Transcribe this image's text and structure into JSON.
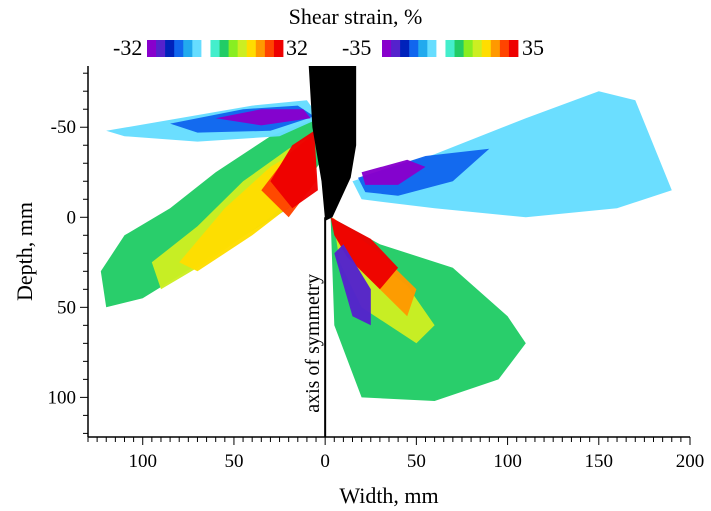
{
  "chart_data": {
    "type": "heatmap",
    "title": "Shear strain, %",
    "xlabel": "Width, mm",
    "ylabel": "Depth, mm",
    "xlim": [
      -130,
      200
    ],
    "ylim": [
      122,
      -84
    ],
    "x_ticks": [
      -100,
      -50,
      0,
      50,
      100,
      150,
      200
    ],
    "x_tick_labels": [
      "100",
      "50",
      "0",
      "50",
      "100",
      "150",
      "200"
    ],
    "y_ticks": [
      -50,
      0,
      50,
      100
    ],
    "y_tick_labels": [
      "-50",
      "0",
      "50",
      "100"
    ],
    "annotation": "axis of symmetry",
    "colorbars": [
      {
        "min_label": "-32",
        "max_label": "32",
        "min": -32,
        "max": 32
      },
      {
        "min_label": "-35",
        "max_label": "35",
        "min": -35,
        "max": 35
      }
    ],
    "colormap": [
      "#8800cc",
      "#5522cc",
      "#0022bb",
      "#1166ee",
      "#22aaee",
      "#66ddff",
      "#ffffff",
      "#44eecc",
      "#22cc66",
      "#88ee22",
      "#ccee22",
      "#ffdd00",
      "#ff9900",
      "#ff4400",
      "#ee0000"
    ],
    "fields": [
      {
        "name": "left-half",
        "scale": 0,
        "zones": [
          {
            "level": 8,
            "pts": [
              [
                -123,
                30
              ],
              [
                -110,
                10
              ],
              [
                -85,
                -5
              ],
              [
                -60,
                -25
              ],
              [
                -30,
                -45
              ],
              [
                -5,
                -55
              ],
              [
                -3,
                -30
              ],
              [
                -20,
                -5
              ],
              [
                -60,
                20
              ],
              [
                -100,
                45
              ],
              [
                -120,
                50
              ]
            ]
          },
          {
            "level": 10,
            "pts": [
              [
                -95,
                25
              ],
              [
                -70,
                5
              ],
              [
                -45,
                -20
              ],
              [
                -20,
                -38
              ],
              [
                -8,
                -45
              ],
              [
                -6,
                -25
              ],
              [
                -30,
                0
              ],
              [
                -65,
                25
              ],
              [
                -90,
                40
              ]
            ]
          },
          {
            "level": 11,
            "pts": [
              [
                -80,
                25
              ],
              [
                -55,
                -5
              ],
              [
                -30,
                -28
              ],
              [
                -10,
                -40
              ],
              [
                -8,
                -15
              ],
              [
                -40,
                10
              ],
              [
                -70,
                30
              ]
            ]
          },
          {
            "level": 13,
            "pts": [
              [
                -35,
                -15
              ],
              [
                -20,
                -35
              ],
              [
                -8,
                -45
              ],
              [
                -5,
                -20
              ],
              [
                -20,
                0
              ]
            ]
          },
          {
            "level": 14,
            "pts": [
              [
                -30,
                -20
              ],
              [
                -18,
                -40
              ],
              [
                -6,
                -48
              ],
              [
                -4,
                -15
              ],
              [
                -18,
                -5
              ]
            ]
          },
          {
            "level": 5,
            "pts": [
              [
                -120,
                -48
              ],
              [
                -80,
                -55
              ],
              [
                -40,
                -62
              ],
              [
                -10,
                -65
              ],
              [
                -3,
                -55
              ],
              [
                -25,
                -45
              ],
              [
                -70,
                -42
              ],
              [
                -110,
                -45
              ]
            ]
          },
          {
            "level": 3,
            "pts": [
              [
                -85,
                -52
              ],
              [
                -45,
                -60
              ],
              [
                -15,
                -62
              ],
              [
                -6,
                -56
              ],
              [
                -30,
                -48
              ],
              [
                -70,
                -47
              ]
            ]
          },
          {
            "level": 0,
            "pts": [
              [
                -60,
                -55
              ],
              [
                -35,
                -60
              ],
              [
                -12,
                -60
              ],
              [
                -8,
                -55
              ],
              [
                -35,
                -51
              ]
            ]
          }
        ]
      },
      {
        "name": "right-half",
        "scale": 1,
        "zones": [
          {
            "level": 8,
            "pts": [
              [
                3,
                0
              ],
              [
                30,
                15
              ],
              [
                70,
                28
              ],
              [
                100,
                55
              ],
              [
                110,
                70
              ],
              [
                95,
                90
              ],
              [
                60,
                102
              ],
              [
                20,
                100
              ],
              [
                5,
                60
              ]
            ]
          },
          {
            "level": 10,
            "pts": [
              [
                5,
                5
              ],
              [
                25,
                22
              ],
              [
                45,
                38
              ],
              [
                60,
                60
              ],
              [
                50,
                70
              ],
              [
                20,
                50
              ],
              [
                8,
                25
              ]
            ]
          },
          {
            "level": 12,
            "pts": [
              [
                4,
                0
              ],
              [
                30,
                20
              ],
              [
                50,
                40
              ],
              [
                45,
                55
              ],
              [
                25,
                35
              ],
              [
                8,
                15
              ]
            ]
          },
          {
            "level": 14,
            "pts": [
              [
                3,
                0
              ],
              [
                25,
                12
              ],
              [
                40,
                28
              ],
              [
                30,
                40
              ],
              [
                12,
                22
              ],
              [
                5,
                10
              ]
            ]
          },
          {
            "level": 5,
            "pts": [
              [
                15,
                -20
              ],
              [
                60,
                -35
              ],
              [
                110,
                -55
              ],
              [
                150,
                -70
              ],
              [
                170,
                -65
              ],
              [
                190,
                -15
              ],
              [
                160,
                -5
              ],
              [
                110,
                0
              ],
              [
                60,
                -5
              ],
              [
                20,
                -10
              ]
            ]
          },
          {
            "level": 3,
            "pts": [
              [
                18,
                -22
              ],
              [
                55,
                -34
              ],
              [
                90,
                -38
              ],
              [
                70,
                -20
              ],
              [
                40,
                -12
              ],
              [
                22,
                -14
              ]
            ]
          },
          {
            "level": 0,
            "pts": [
              [
                20,
                -25
              ],
              [
                45,
                -32
              ],
              [
                55,
                -28
              ],
              [
                40,
                -18
              ],
              [
                22,
                -18
              ]
            ]
          },
          {
            "level": 1,
            "pts": [
              [
                5,
                20
              ],
              [
                10,
                15
              ],
              [
                25,
                40
              ],
              [
                25,
                60
              ],
              [
                15,
                55
              ]
            ]
          }
        ]
      }
    ]
  }
}
